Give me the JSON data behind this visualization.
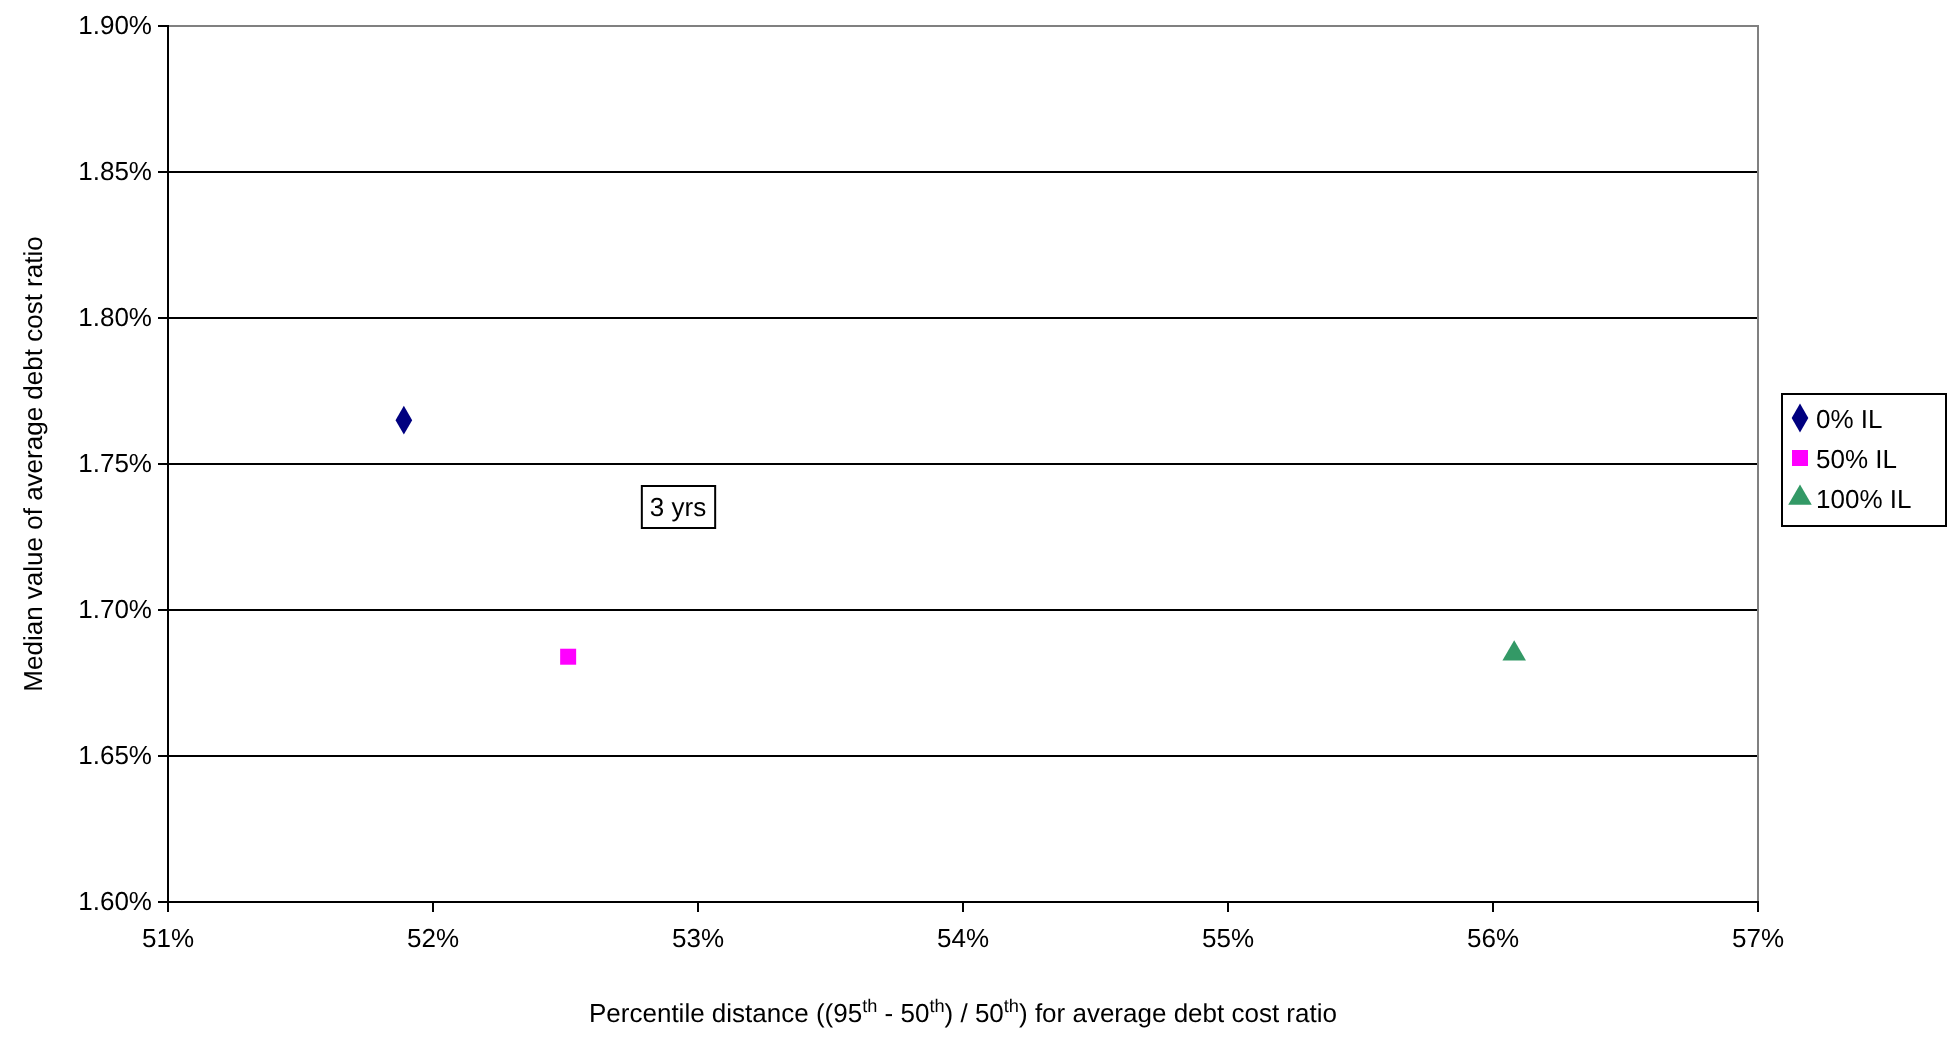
{
  "chart_data": {
    "type": "scatter",
    "xlabel": "Percentile distance ((95$^{th}$ - 50$^{th}$) / 50$^{th}$) for average debt cost ratio",
    "ylabel": "Median value of average debt cost ratio",
    "annotations": [
      "3 yrs"
    ],
    "xlim": [
      51,
      57
    ],
    "xticks": [
      {
        "value": 51,
        "label": "51%"
      },
      {
        "value": 52,
        "label": "52%"
      },
      {
        "value": 53,
        "label": "53%"
      },
      {
        "value": 54,
        "label": "54%"
      },
      {
        "value": 55,
        "label": "55%"
      },
      {
        "value": 56,
        "label": "56%"
      },
      {
        "value": 57,
        "label": "57%"
      }
    ],
    "ylim": [
      1.6,
      1.9
    ],
    "yticks": [
      {
        "value": 1.6,
        "label": "1.60%"
      },
      {
        "value": 1.65,
        "label": "1.65%"
      },
      {
        "value": 1.7,
        "label": "1.70%"
      },
      {
        "value": 1.75,
        "label": "1.75%"
      },
      {
        "value": 1.8,
        "label": "1.80%"
      },
      {
        "value": 1.85,
        "label": "1.85%"
      },
      {
        "value": 1.9,
        "label": "1.90%"
      }
    ],
    "grid": "y",
    "legend": "right",
    "series": [
      {
        "name": "0% IL",
        "color": "#000080",
        "marker": "diamond",
        "x": [
          51.89
        ],
        "values": [
          1.765
        ]
      },
      {
        "name": "50% IL",
        "color": "#ff00ff",
        "marker": "square",
        "x": [
          52.51
        ],
        "values": [
          1.684
        ]
      },
      {
        "name": "100% IL",
        "color": "#339966",
        "marker": "triangle",
        "x": [
          56.08
        ],
        "values": [
          1.685
        ]
      }
    ]
  }
}
